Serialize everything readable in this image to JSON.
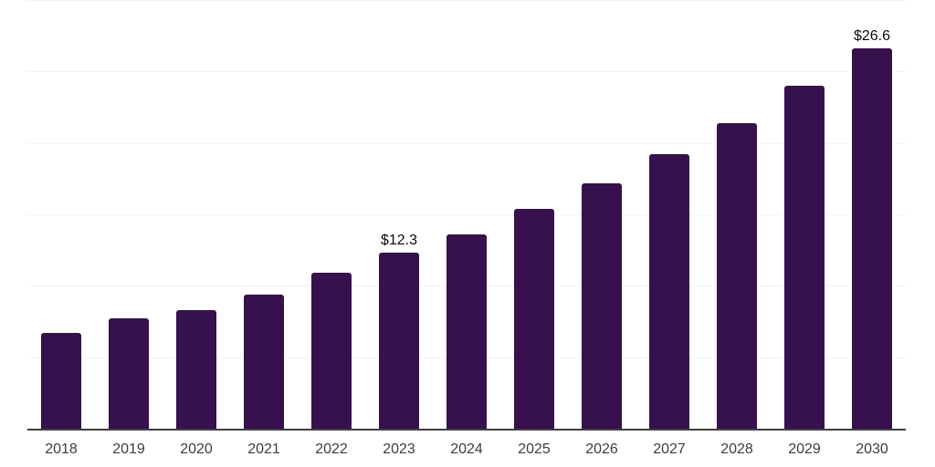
{
  "chart_data": {
    "type": "bar",
    "title": "",
    "xlabel": "",
    "ylabel": "",
    "categories": [
      "2018",
      "2019",
      "2020",
      "2021",
      "2022",
      "2023",
      "2024",
      "2025",
      "2026",
      "2027",
      "2028",
      "2029",
      "2030"
    ],
    "values": [
      6.7,
      7.7,
      8.3,
      9.4,
      10.9,
      12.3,
      13.6,
      15.4,
      17.2,
      19.2,
      21.4,
      24.0,
      26.6
    ],
    "data_labels": {
      "2023": "$12.3",
      "2030": "$26.6"
    },
    "ylim": [
      0,
      30
    ],
    "gridline_step": 5,
    "grid": true,
    "legend": "none",
    "styles": {
      "bar_color": "#36114b",
      "grid_color": "#f3f3f4",
      "axis_color": "#3f3f3f",
      "tick_label_color": "#3d3d3d",
      "data_label_color": "#0b0b0b",
      "background": "#ffffff"
    }
  }
}
